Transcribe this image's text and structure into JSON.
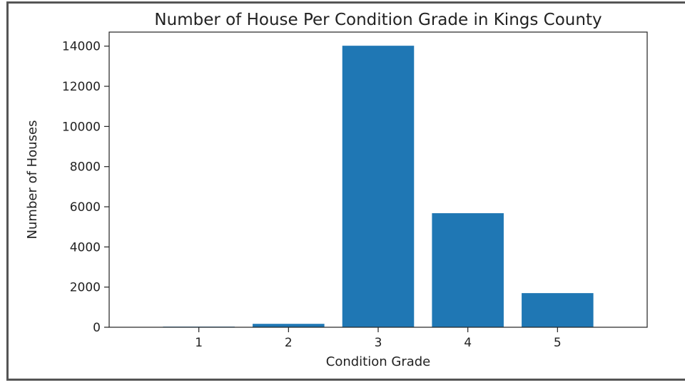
{
  "chart_data": {
    "type": "bar",
    "title": "Number of House Per Condition Grade in Kings County",
    "xlabel": "Condition Grade",
    "ylabel": "Number of Houses",
    "categories": [
      "1",
      "2",
      "3",
      "4",
      "5"
    ],
    "values": [
      30,
      170,
      14020,
      5680,
      1700
    ],
    "ylim": [
      0,
      14700
    ],
    "yticks": [
      "0",
      "2000",
      "4000",
      "6000",
      "8000",
      "10000",
      "12000",
      "14000"
    ],
    "bar_color": "#1f77b4",
    "grid": false,
    "legend": "none"
  }
}
